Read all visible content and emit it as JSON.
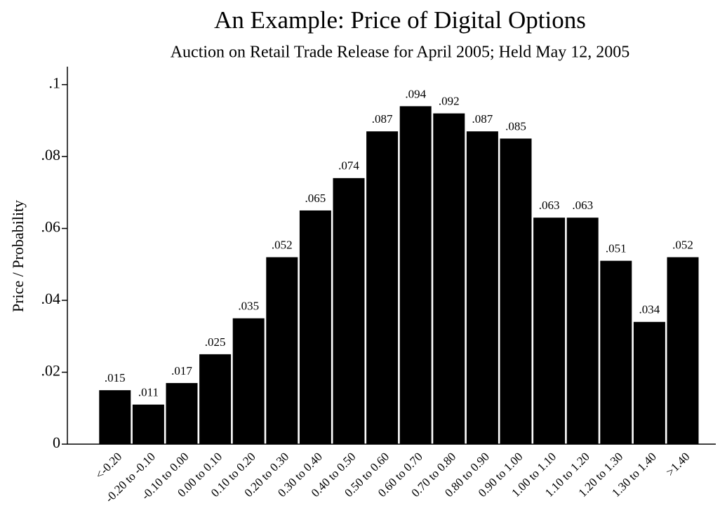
{
  "chart_data": {
    "type": "bar",
    "title": "An Example: Price of Digital Options",
    "subtitle": "Auction on Retail Trade Release for April 2005; Held May 12, 2005",
    "y_label": "Price / Probability",
    "categories": [
      "<-0.20",
      "-0.20 to -0.10",
      "-0.10 to 0.00",
      "0.00 to 0.10",
      "0.10 to 0.20",
      "0.20 to 0.30",
      "0.30 to 0.40",
      "0.40 to 0.50",
      "0.50 to 0.60",
      "0.60 to 0.70",
      "0.70 to 0.80",
      "0.80 to 0.90",
      "0.90 to 1.00",
      "1.00 to 1.10",
      "1.10 to 1.20",
      "1.20 to 1.30",
      "1.30 to 1.40",
      ">1.40"
    ],
    "values": [
      0.015,
      0.011,
      0.017,
      0.025,
      0.035,
      0.052,
      0.065,
      0.074,
      0.087,
      0.094,
      0.092,
      0.087,
      0.085,
      0.063,
      0.063,
      0.051,
      0.034,
      0.052
    ],
    "value_labels": [
      ".015",
      ".011",
      ".017",
      ".025",
      ".035",
      ".052",
      ".065",
      ".074",
      ".087",
      ".094",
      ".092",
      ".087",
      ".085",
      ".063",
      ".063",
      ".051",
      ".034",
      ".052"
    ],
    "color": "#000000",
    "ylim": [
      0,
      0.105
    ],
    "yticks": [
      0,
      {
        "value": 0.02,
        "label": ".02"
      },
      {
        "value": 0.04,
        "label": ".04"
      },
      {
        "value": 0.06,
        "label": ".06"
      },
      {
        "value": 0.08,
        "label": ".08"
      },
      {
        "value": 0.1,
        "label": ".1"
      }
    ]
  }
}
